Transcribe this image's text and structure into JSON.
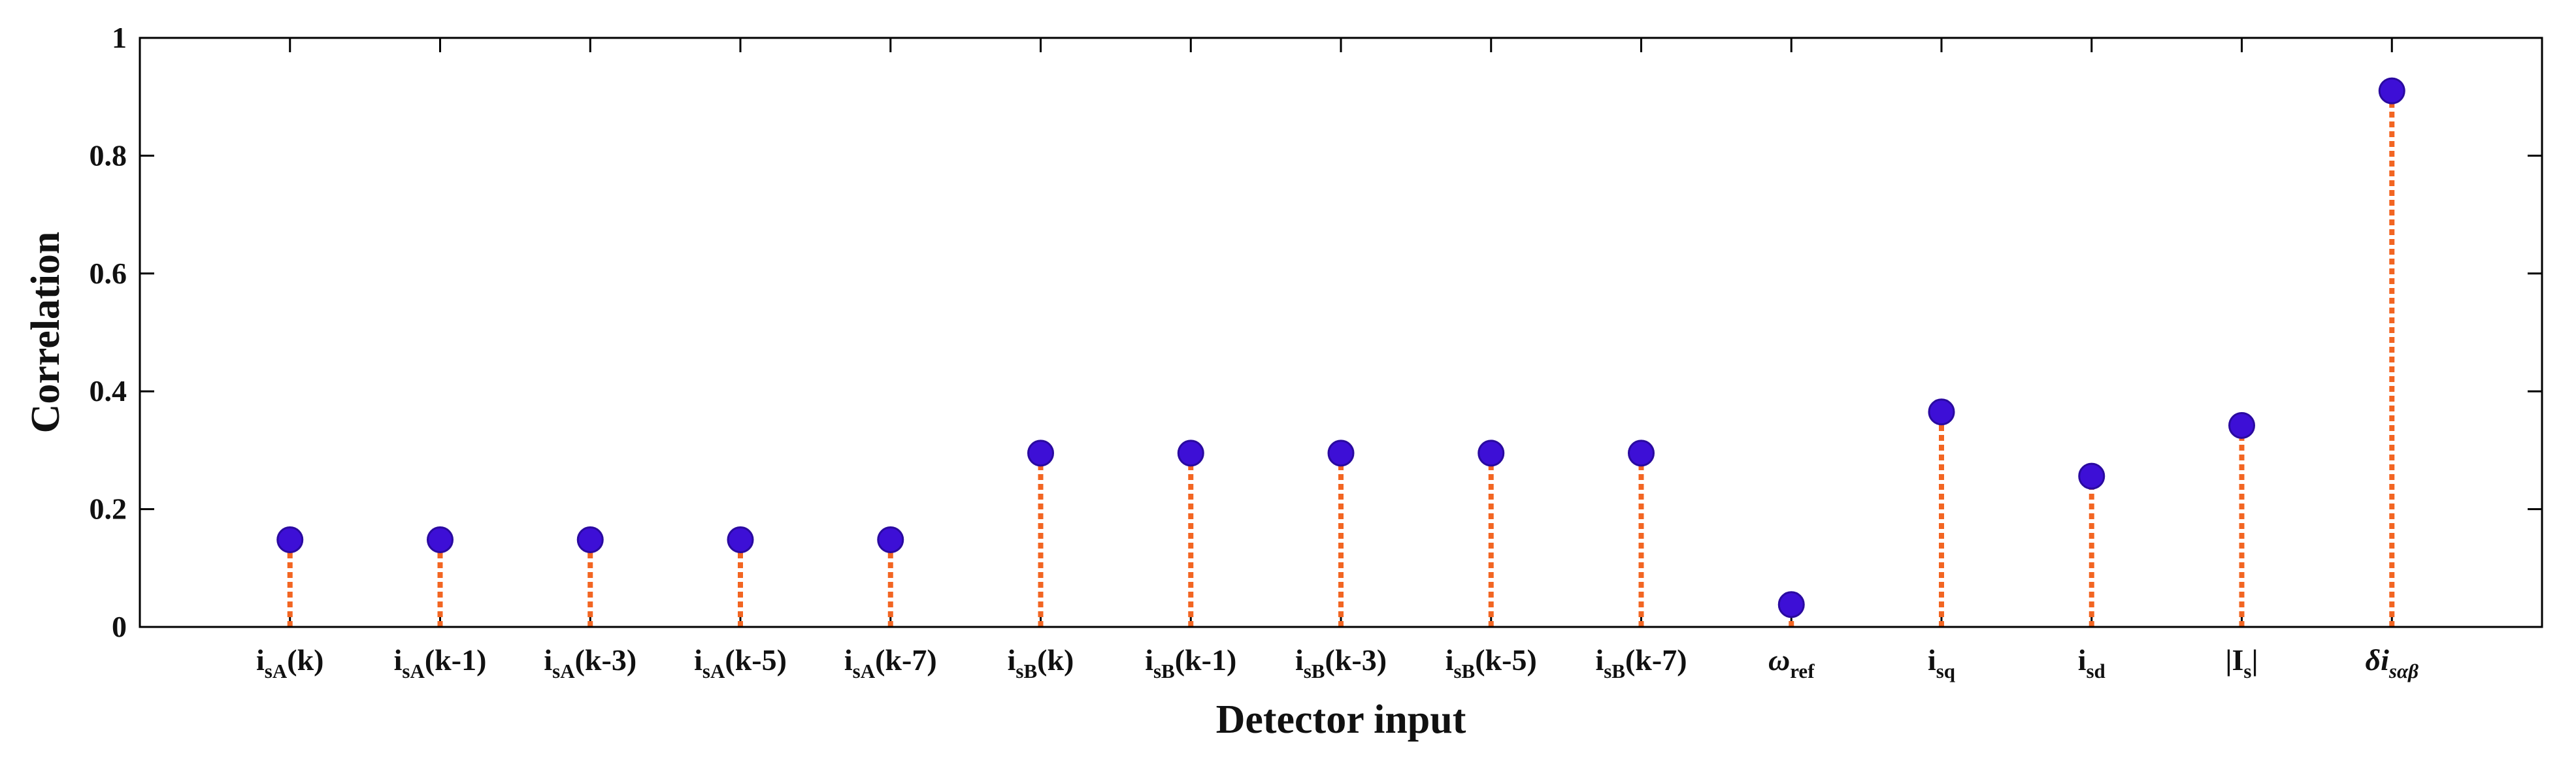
{
  "chart_data": {
    "type": "stem",
    "title": "",
    "xlabel": "Detector input",
    "ylabel": "Correlation",
    "ylim": [
      0,
      1
    ],
    "yticks": [
      "0",
      "0.2",
      "0.4",
      "0.6",
      "0.8",
      "1"
    ],
    "grid": false,
    "legend": "none",
    "categories": [
      {
        "main": "i",
        "sub": "sA",
        "tail": "(k)"
      },
      {
        "main": "i",
        "sub": "sA",
        "tail": "(k-1)"
      },
      {
        "main": "i",
        "sub": "sA",
        "tail": "(k-3)"
      },
      {
        "main": "i",
        "sub": "sA",
        "tail": "(k-5)"
      },
      {
        "main": "i",
        "sub": "sA",
        "tail": "(k-7)"
      },
      {
        "main": "i",
        "sub": "sB",
        "tail": "(k)"
      },
      {
        "main": "i",
        "sub": "sB",
        "tail": "(k-1)"
      },
      {
        "main": "i",
        "sub": "sB",
        "tail": "(k-3)"
      },
      {
        "main": "i",
        "sub": "sB",
        "tail": "(k-5)"
      },
      {
        "main": "i",
        "sub": "sB",
        "tail": "(k-7)"
      },
      {
        "main": "ω",
        "sub": "ref",
        "tail": ""
      },
      {
        "main": "i",
        "sub": "sq",
        "tail": ""
      },
      {
        "main": "i",
        "sub": "sd",
        "tail": ""
      },
      {
        "main": "|I",
        "sub": "s",
        "tail": "|"
      },
      {
        "main": "δi",
        "sub": "sαβ",
        "tail": ""
      }
    ],
    "values": [
      0.148,
      0.148,
      0.148,
      0.148,
      0.148,
      0.295,
      0.295,
      0.295,
      0.295,
      0.295,
      0.038,
      0.365,
      0.256,
      0.342,
      0.91
    ],
    "colors": {
      "marker": "#3d0fd6",
      "marker_edge": "#2a0aa0",
      "stem": "#f26522",
      "axis": "#000000"
    }
  }
}
